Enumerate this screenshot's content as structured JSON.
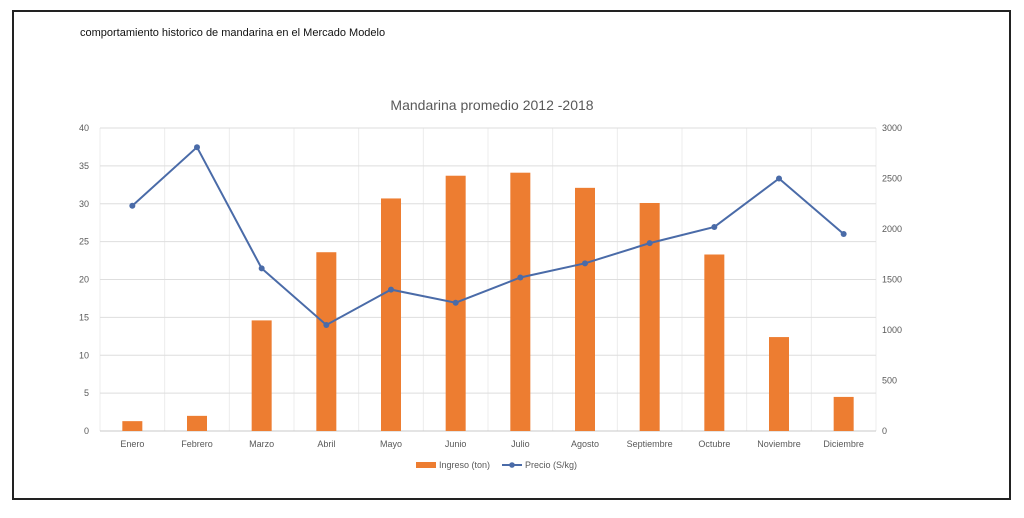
{
  "caption": "comportamiento historico de mandarina en el Mercado Modelo",
  "chart_data": {
    "type": "bar+line",
    "title": "Mandarina promedio 2012 -2018",
    "categories": [
      "Enero",
      "Febrero",
      "Marzo",
      "Abril",
      "Mayo",
      "Junio",
      "Julio",
      "Agosto",
      "Septiembre",
      "Octubre",
      "Noviembre",
      "Diciembre"
    ],
    "series": [
      {
        "name": "Ingreso (ton)",
        "type": "bar",
        "axis": "left",
        "color": "#ED7D31",
        "values": [
          1.3,
          2.0,
          14.6,
          23.6,
          30.7,
          33.7,
          34.1,
          32.1,
          30.1,
          23.3,
          12.4,
          4.5
        ]
      },
      {
        "name": "Precio (S/kg)",
        "type": "line",
        "axis": "right",
        "color": "#4A6BA8",
        "values": [
          2230,
          2810,
          1610,
          1050,
          1400,
          1270,
          1520,
          1660,
          1860,
          2020,
          2500,
          1950
        ]
      }
    ],
    "ylim_left": [
      0,
      40
    ],
    "yticks_left": [
      0,
      5,
      10,
      15,
      20,
      25,
      30,
      35,
      40
    ],
    "ylim_right": [
      0,
      3000
    ],
    "yticks_right": [
      0,
      500,
      1000,
      1500,
      2000,
      2500,
      3000
    ],
    "grid": true,
    "legend": "bottom"
  }
}
